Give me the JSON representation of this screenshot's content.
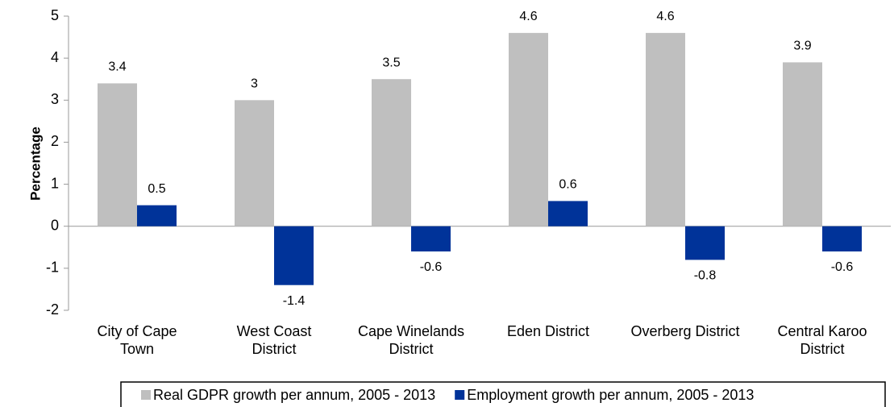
{
  "chart_data": {
    "type": "bar",
    "ylabel": "Percentage",
    "categories": [
      "City of Cape\nTown",
      "West Coast\nDistrict",
      "Cape Winelands\nDistrict",
      "Eden District",
      "Overberg District",
      "Central Karoo\nDistrict"
    ],
    "series": [
      {
        "name": "Real GDPR growth per annum, 2005 - 2013",
        "color": "#bfbfbf",
        "values": [
          3.4,
          3,
          3.5,
          4.6,
          4.6,
          3.9
        ]
      },
      {
        "name": "Employment growth per annum, 2005 - 2013",
        "color": "#003399",
        "values": [
          0.5,
          -1.4,
          -0.6,
          0.6,
          -0.8,
          -0.6
        ]
      }
    ],
    "ylim": [
      -2,
      5
    ],
    "yticks": [
      -2,
      -1,
      0,
      1,
      2,
      3,
      4,
      5
    ],
    "grid": false,
    "legend": "bottom"
  }
}
